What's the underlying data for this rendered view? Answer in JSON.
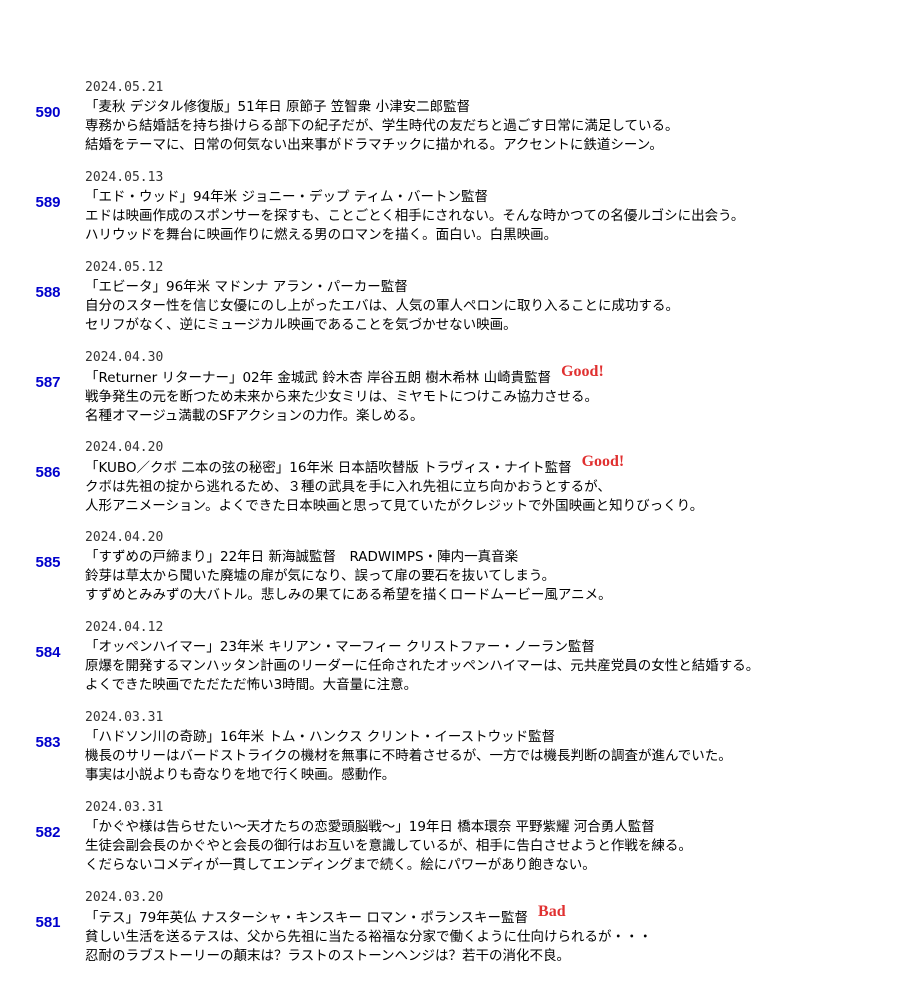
{
  "entries": [
    {
      "number": "590",
      "date": "2024.05.21",
      "title": "「麦秋 デジタル修復版」51年日 原節子 笠智衆 小津安二郎監督",
      "lines": [
        "専務から結婚話を持ち掛けらる部下の紀子だが、学生時代の友だちと過ごす日常に満足している。",
        "結婚をテーマに、日常の何気ない出来事がドラマチックに描かれる。アクセントに鉄道シーン。"
      ]
    },
    {
      "number": "589",
      "date": "2024.05.13",
      "title": "「エド・ウッド」94年米 ジョニー・デップ ティム・バートン監督",
      "lines": [
        "エドは映画作成のスポンサーを探すも、ことごとく相手にされない。そんな時かつての名優ルゴシに出会う。",
        "ハリウッドを舞台に映画作りに燃える男のロマンを描く。面白い。白黒映画。"
      ]
    },
    {
      "number": "588",
      "date": "2024.05.12",
      "title": "「エビータ」96年米 マドンナ アラン・パーカー監督",
      "lines": [
        "自分のスター性を信じ女優にのし上がったエバは、人気の軍人ペロンに取り入ることに成功する。",
        "セリフがなく、逆にミュージカル映画であることを気づかせない映画。"
      ]
    },
    {
      "number": "587",
      "date": "2024.04.30",
      "title": "「Returner リターナー」02年 金城武 鈴木杏 岸谷五朗 樹木希林 山崎貴監督",
      "rating": "Good!",
      "lines": [
        "戦争発生の元を断つため未来から来た少女ミリは、ミヤモトにつけこみ協力させる。",
        "名種オマージュ満載のSFアクションの力作。楽しめる。"
      ]
    },
    {
      "number": "586",
      "date": "2024.04.20",
      "title": "「KUBO／クボ 二本の弦の秘密」16年米 日本語吹替版 トラヴィス・ナイト監督",
      "rating": "Good!",
      "lines": [
        "クボは先祖の掟から逃れるため、３種の武具を手に入れ先祖に立ち向かおうとするが、",
        "人形アニメーション。よくできた日本映画と思って見ていたがクレジットで外国映画と知りびっくり。"
      ]
    },
    {
      "number": "585",
      "date": "2024.04.20",
      "title": "「すずめの戸締まり」22年日 新海誠監督　RADWIMPS・陣内一真音楽",
      "lines": [
        "鈴芽は草太から聞いた廃墟の扉が気になり、誤って扉の要石を抜いてしまう。",
        "すずめとみみずの大バトル。悲しみの果てにある希望を描くロードムービー風アニメ。"
      ]
    },
    {
      "number": "584",
      "date": "2024.04.12",
      "title": "「オッペンハイマー」23年米 キリアン・マーフィー クリストファー・ノーラン監督",
      "lines": [
        "原爆を開発するマンハッタン計画のリーダーに任命されたオッペンハイマーは、元共産党員の女性と結婚する。",
        "よくできた映画でただただ怖い3時間。大音量に注意。"
      ]
    },
    {
      "number": "583",
      "date": "2024.03.31",
      "title": "「ハドソン川の奇跡」16年米 トム・ハンクス クリント・イーストウッド監督",
      "lines": [
        "機長のサリーはバードストライクの機材を無事に不時着させるが、一方では機長判断の調査が進んでいた。",
        "事実は小説よりも奇なりを地で行く映画。感動作。"
      ]
    },
    {
      "number": "582",
      "date": "2024.03.31",
      "title": "「かぐや様は告らせたい～天才たちの恋愛頭脳戦～」19年日 橋本環奈 平野紫耀 河合勇人監督",
      "lines": [
        "生徒会副会長のかぐやと会長の御行はお互いを意識しているが、相手に告白させようと作戦を練る。",
        "くだらないコメディが一貫してエンディングまで続く。絵にパワーがあり飽きない。"
      ]
    },
    {
      "number": "581",
      "date": "2024.03.20",
      "title": "「テス」79年英仏 ナスターシャ・キンスキー ロマン・ポランスキー監督",
      "rating": "Bad",
      "lines": [
        "貧しい生活を送るテスは、父から先祖に当たる裕福な分家で働くように仕向けられるが・・・",
        "忍耐のラブストーリーの顛末は？ラストのストーンヘンジは？若干の消化不良。"
      ]
    }
  ]
}
